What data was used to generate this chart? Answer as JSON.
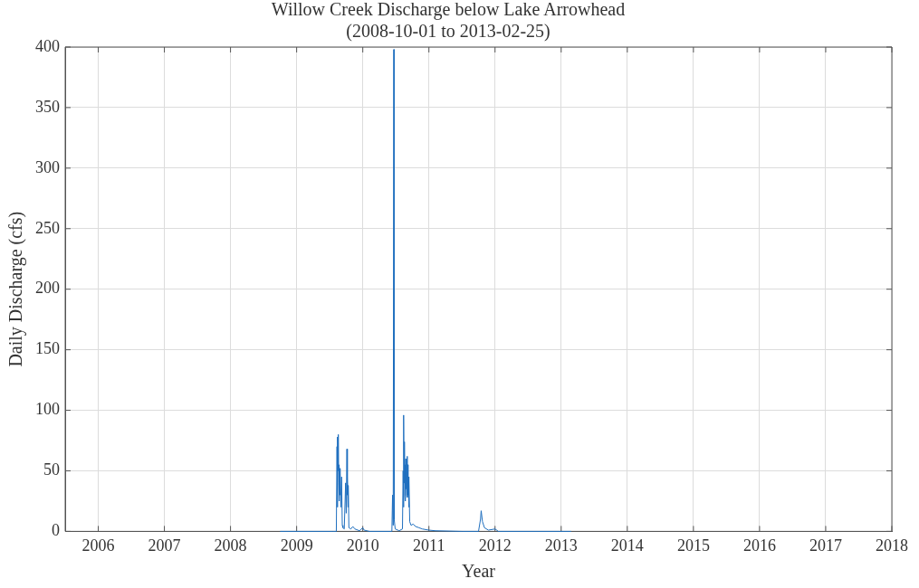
{
  "chart_data": {
    "type": "line",
    "title": "Willow Creek Discharge below Lake Arrowhead",
    "subtitle": "(2008-10-01 to 2013-02-25)",
    "xlabel": "Year",
    "ylabel": "Daily Discharge (cfs)",
    "xlim": [
      2005.5,
      2018
    ],
    "xticks": [
      2006,
      2007,
      2008,
      2009,
      2010,
      2011,
      2012,
      2013,
      2014,
      2015,
      2016,
      2017,
      2018
    ],
    "ylim": [
      0,
      400
    ],
    "yticks": [
      0,
      50,
      100,
      150,
      200,
      250,
      300,
      350,
      400
    ],
    "grid": true,
    "legend": false,
    "marker": "none",
    "line_style": "solid",
    "series": [
      {
        "color": "#1f6fbf",
        "x": [
          2008.75,
          2009.55,
          2009.6,
          2009.61,
          2009.615,
          2009.62,
          2009.625,
          2009.63,
          2009.635,
          2009.64,
          2009.645,
          2009.65,
          2009.655,
          2009.66,
          2009.67,
          2009.68,
          2009.69,
          2009.7,
          2009.72,
          2009.74,
          2009.75,
          2009.76,
          2009.765,
          2009.77,
          2009.775,
          2009.78,
          2009.79,
          2009.82,
          2009.85,
          2009.88,
          2009.95,
          2010.0,
          2010.02,
          2010.1,
          2010.44,
          2010.45,
          2010.46,
          2010.47,
          2010.475,
          2010.49,
          2010.55,
          2010.6,
          2010.61,
          2010.615,
          2010.62,
          2010.625,
          2010.63,
          2010.635,
          2010.64,
          2010.645,
          2010.65,
          2010.655,
          2010.66,
          2010.665,
          2010.67,
          2010.675,
          2010.68,
          2010.685,
          2010.69,
          2010.695,
          2010.7,
          2010.71,
          2010.73,
          2010.76,
          2010.8,
          2010.85,
          2010.9,
          2011.0,
          2011.1,
          2011.5,
          2011.75,
          2011.78,
          2011.79,
          2011.81,
          2011.84,
          2011.9,
          2012.0,
          2012.05,
          2013.15
        ],
        "values": [
          0,
          0,
          0,
          70,
          20,
          78,
          50,
          80,
          40,
          55,
          25,
          52,
          30,
          48,
          20,
          45,
          5,
          3,
          2,
          40,
          15,
          68,
          30,
          45,
          20,
          38,
          3,
          2,
          4,
          2,
          0.5,
          3,
          1,
          0,
          0,
          30,
          5,
          398,
          10,
          2,
          0.5,
          2,
          50,
          20,
          96,
          40,
          74,
          30,
          55,
          25,
          60,
          35,
          52,
          30,
          62,
          28,
          55,
          30,
          45,
          20,
          42,
          8,
          5,
          6,
          4,
          3,
          2,
          1,
          0.5,
          0,
          0,
          10,
          17,
          8,
          3,
          1,
          2,
          0,
          0
        ]
      }
    ]
  }
}
